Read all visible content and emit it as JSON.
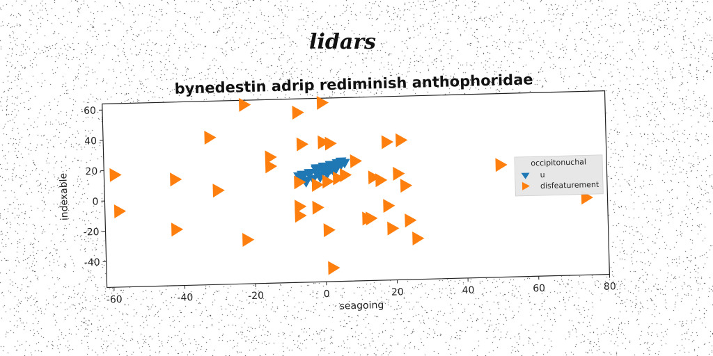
{
  "figure": {
    "suptitle": "lidars"
  },
  "chart_data": {
    "type": "scatter",
    "title": "bynedestin adrip rediminish anthophoridae",
    "xlabel": "seagoing",
    "ylabel": "indexable",
    "xlim": [
      -62,
      80
    ],
    "ylim": [
      -57,
      64
    ],
    "xticks": [
      -60,
      -40,
      -20,
      0,
      20,
      40,
      60,
      80
    ],
    "yticks": [
      60,
      40,
      20,
      0,
      -20,
      -40
    ],
    "grid": false,
    "legend": {
      "title": "occipitonuchal",
      "placement": "right",
      "entries": [
        "u",
        "disfeaturement"
      ]
    },
    "colors": {
      "u": "#1f77b4",
      "disfeaturement": "#ff7f0e"
    },
    "series": [
      {
        "name": "u",
        "marker": "triangle-down",
        "x": [
          -6,
          -4,
          -2,
          0,
          2,
          4,
          5,
          -5,
          -3,
          -1,
          1,
          3,
          -7,
          -4,
          -2,
          0,
          2,
          4,
          6,
          -5,
          -3,
          -1,
          1,
          3,
          -6,
          -2,
          2,
          5
        ],
        "y": [
          12,
          14,
          15,
          16,
          18,
          19,
          20,
          10,
          11,
          13,
          15,
          16,
          13,
          15,
          17,
          19,
          20,
          21,
          21,
          9,
          11,
          12,
          14,
          15,
          14,
          18,
          17,
          22
        ]
      },
      {
        "name": "disfeaturement",
        "marker": "triangle-right",
        "x": [
          -59,
          -58,
          -42,
          -42,
          -32,
          -30,
          -22,
          -22,
          -15,
          -15,
          -7,
          -7,
          -7,
          -7,
          -6,
          -2,
          -2,
          0,
          0,
          1,
          1,
          2,
          2,
          4,
          6,
          9,
          12,
          13,
          14,
          16,
          18,
          18,
          19,
          21,
          22,
          23,
          24,
          26,
          50,
          74
        ],
        "y": [
          17,
          -7,
          13,
          -20,
          40,
          5,
          61,
          -28,
          26,
          20,
          -7,
          -13,
          55,
          9,
          34,
          7,
          -8,
          61,
          35,
          9,
          -23,
          34,
          -48,
          11,
          13,
          22,
          -16,
          -16,
          11,
          9,
          -8,
          34,
          -23,
          13,
          35,
          5,
          -18,
          -30,
          17,
          -6
        ]
      }
    ]
  }
}
